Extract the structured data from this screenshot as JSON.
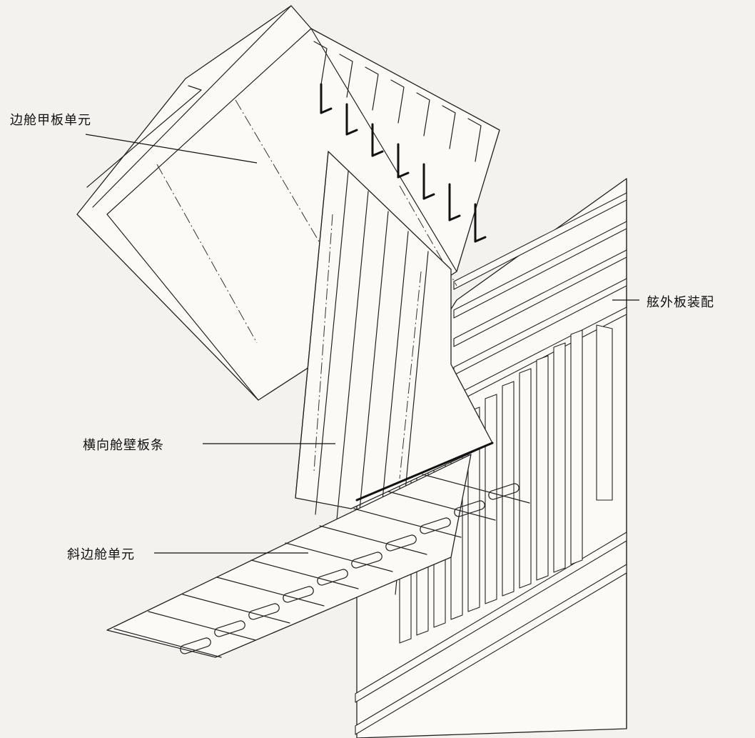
{
  "labels": {
    "side_deck_unit": "边舱甲板单元",
    "shell_plate_assembly": "舷外板装配",
    "transverse_bulkhead_strip": "横向舱壁板条",
    "hopper_tank_unit": "斜边舱单元"
  }
}
